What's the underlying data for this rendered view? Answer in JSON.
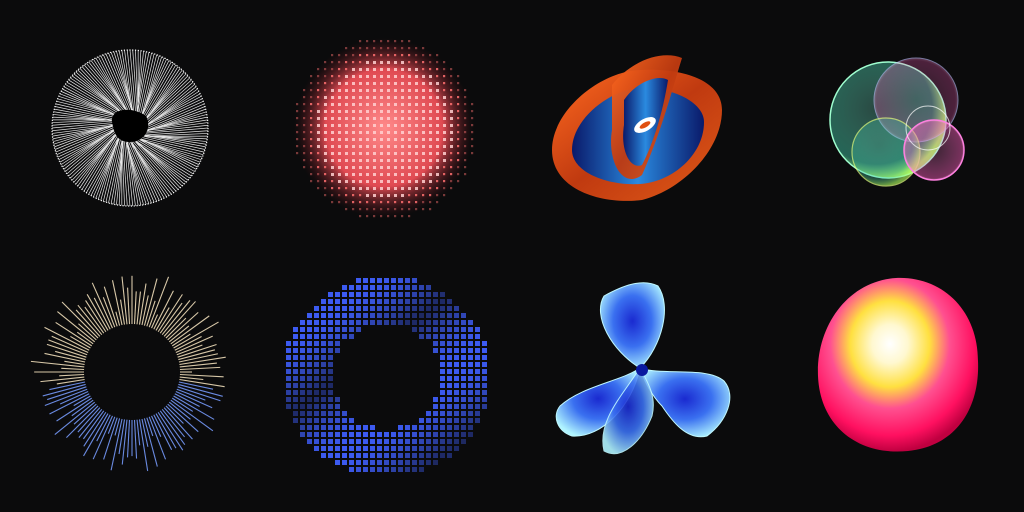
{
  "background": "#0b0b0c",
  "artworks": [
    {
      "name": "white-radial-line-circle",
      "colors": [
        "#ffffff",
        "#000000"
      ]
    },
    {
      "name": "red-pixel-dot-sphere",
      "colors": [
        "#ff6b6b",
        "#c0303a",
        "#ffd0d0"
      ]
    },
    {
      "name": "orange-blue-twisted-ribbon",
      "colors": [
        "#e0501a",
        "#1a6fd0",
        "#0a1a6a",
        "#ffffff"
      ]
    },
    {
      "name": "iridescent-overlapping-bubbles",
      "colors": [
        "#40e0d0",
        "#b0ff40",
        "#ff60c0",
        "#8080ff"
      ]
    },
    {
      "name": "audio-waveform-ring",
      "colors": [
        "#d8c8a8",
        "#6a8ae0",
        "#ffffff"
      ]
    },
    {
      "name": "multicolor-pixel-ring",
      "colors": [
        "#ff2a2a",
        "#2ae0ff",
        "#ff40ff",
        "#ffffff"
      ]
    },
    {
      "name": "blue-three-petal-flower",
      "colors": [
        "#a8f0ff",
        "#2a40e0",
        "#60c0ff"
      ]
    },
    {
      "name": "magenta-yellow-gradient-blob",
      "colors": [
        "#ffffff",
        "#ffe040",
        "#ff2080",
        "#ff1050"
      ]
    }
  ]
}
